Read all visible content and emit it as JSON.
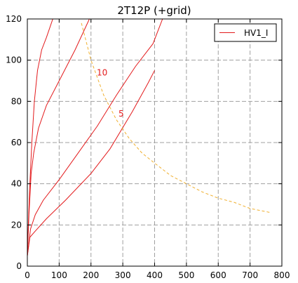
{
  "chart_data": {
    "type": "line",
    "title": "2T12P (+grid)",
    "xlabel": "",
    "ylabel": "",
    "xlim": [
      0,
      800
    ],
    "ylim": [
      0,
      120
    ],
    "x_ticks": [
      0,
      100,
      200,
      300,
      400,
      500,
      600,
      700,
      800
    ],
    "y_ticks": [
      0,
      20,
      40,
      60,
      80,
      100,
      120
    ],
    "grid": true,
    "grid_style": "dashed",
    "legend": {
      "position": "top-right",
      "entries": [
        "HV1_I"
      ]
    },
    "colors": {
      "series": "#e31a1c",
      "power_curve": "#f0b030",
      "grid": "#a0a0a0"
    },
    "series": [
      {
        "name": "HV1_I",
        "curves": [
          {
            "label": "",
            "points": [
              [
                0,
                5
              ],
              [
                3,
                20
              ],
              [
                8,
                40
              ],
              [
                14,
                60
              ],
              [
                22,
                80
              ],
              [
                32,
                95
              ],
              [
                45,
                105
              ],
              [
                60,
                111
              ],
              [
                80,
                120
              ]
            ]
          },
          {
            "label": "10",
            "points": [
              [
                0,
                5
              ],
              [
                5,
                25
              ],
              [
                12,
                45
              ],
              [
                20,
                55
              ],
              [
                35,
                67
              ],
              [
                60,
                78
              ],
              [
                100,
                90
              ],
              [
                150,
                105
              ],
              [
                195,
                120
              ]
            ]
          },
          {
            "label": "5",
            "points": [
              [
                0,
                5
              ],
              [
                10,
                18
              ],
              [
                25,
                25
              ],
              [
                50,
                32
              ],
              [
                100,
                42
              ],
              [
                160,
                55
              ],
              [
                220,
                68
              ],
              [
                280,
                83
              ],
              [
                340,
                97
              ],
              [
                395,
                108
              ],
              [
                425,
                120
              ]
            ]
          },
          {
            "label": "",
            "points": [
              [
                0,
                5
              ],
              [
                8,
                14
              ],
              [
                25,
                17
              ],
              [
                60,
                23
              ],
              [
                120,
                32
              ],
              [
                200,
                45
              ],
              [
                260,
                57
              ],
              [
                330,
                75
              ],
              [
                380,
                89
              ],
              [
                400,
                95
              ]
            ]
          }
        ]
      }
    ],
    "power_curve": {
      "style": "dashed",
      "points": [
        [
          170,
          118
        ],
        [
          200,
          100
        ],
        [
          240,
          83
        ],
        [
          280,
          71
        ],
        [
          320,
          62
        ],
        [
          360,
          55
        ],
        [
          400,
          50
        ],
        [
          450,
          44
        ],
        [
          500,
          40
        ],
        [
          550,
          36
        ],
        [
          600,
          33
        ],
        [
          650,
          31
        ],
        [
          700,
          28
        ],
        [
          765,
          26
        ]
      ]
    },
    "annotations": [
      {
        "text": "10",
        "x": 235,
        "y": 94
      },
      {
        "text": "5",
        "x": 295,
        "y": 74
      }
    ]
  }
}
